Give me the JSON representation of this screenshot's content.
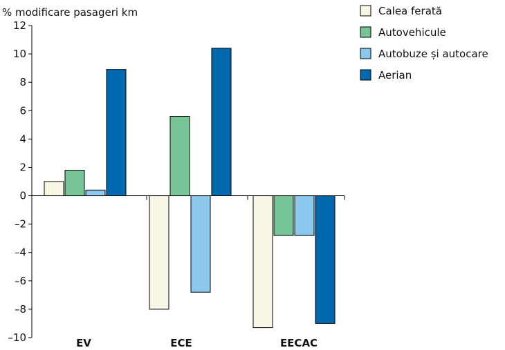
{
  "chart_data": {
    "type": "bar",
    "ylabel": "% modificare pasageri km",
    "ylim": [
      -10,
      12
    ],
    "yticks": [
      "12",
      "10",
      "8",
      "6",
      "4",
      "2",
      "0",
      "–2",
      "–4",
      "–6",
      "–8",
      "–10"
    ],
    "ytick_values": [
      12,
      10,
      8,
      6,
      4,
      2,
      0,
      -2,
      -4,
      -6,
      -8,
      -10
    ],
    "categories": [
      "EV",
      "ECE",
      "EECAC"
    ],
    "series": [
      {
        "name": "Calea ferată",
        "color": "#f8f6e4",
        "values": [
          1.0,
          -8.0,
          -9.3
        ]
      },
      {
        "name": "Autovehicule",
        "color": "#77c596",
        "values": [
          1.8,
          5.6,
          -2.8
        ]
      },
      {
        "name": "Autobuze și autocare",
        "color": "#8cc8ee",
        "values": [
          0.4,
          -6.8,
          -2.8
        ]
      },
      {
        "name": "Aerian",
        "color": "#0069ad",
        "values": [
          8.9,
          10.4,
          -9.0
        ]
      }
    ],
    "legend_position": "top-right",
    "grid": false
  }
}
